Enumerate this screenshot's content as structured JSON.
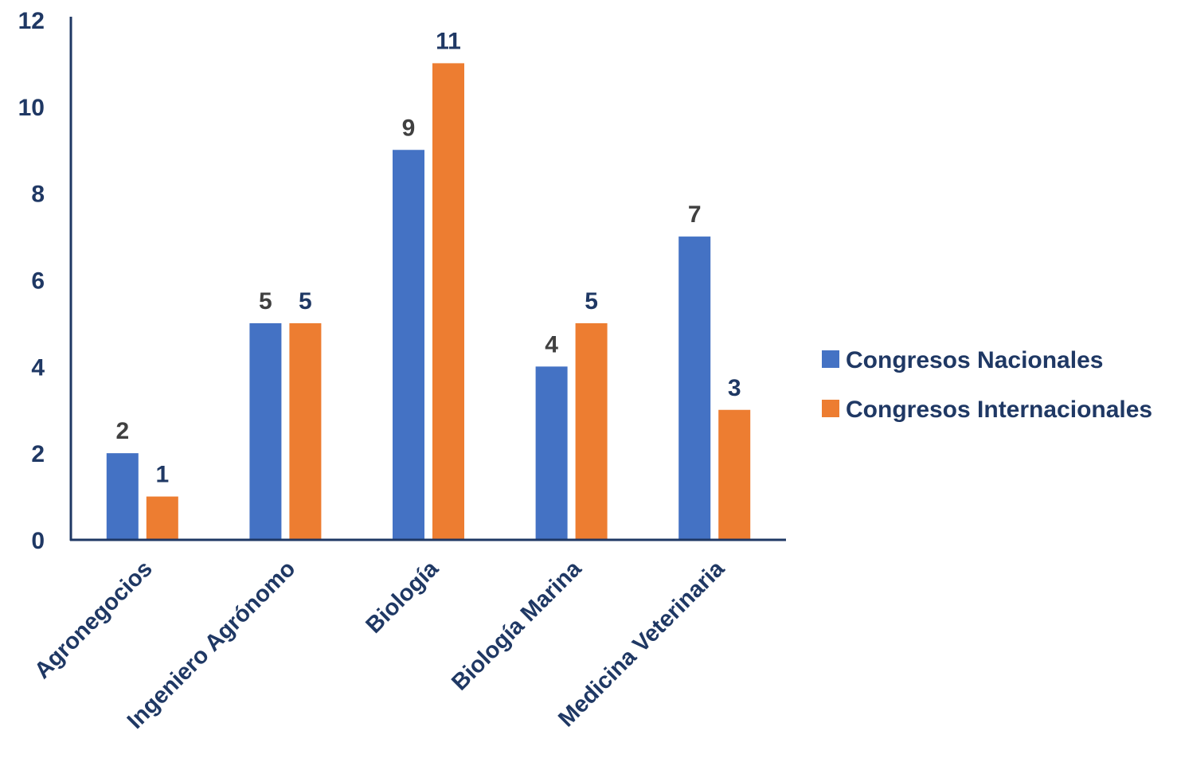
{
  "chart_data": {
    "type": "bar",
    "categories": [
      "Agronegocios",
      "Ingeniero Agrónomo",
      "Biología",
      "Biología Marina",
      "Medicina Veterinaria"
    ],
    "series": [
      {
        "name": "Congresos Nacionales",
        "values": [
          2,
          5,
          9,
          4,
          7
        ],
        "color": "#4472C4"
      },
      {
        "name": "Congresos Internacionales",
        "values": [
          1,
          5,
          11,
          5,
          3
        ],
        "color": "#ED7D31"
      }
    ],
    "ylim": [
      0,
      12
    ],
    "yticks": [
      0,
      2,
      4,
      6,
      8,
      10,
      12
    ],
    "ytick_labels": [
      "0",
      "2",
      "4",
      "6",
      "8",
      "10",
      "12"
    ],
    "grid": false,
    "legend_position": "right",
    "axis_color": "#1F3864",
    "tick_label_color": "#1F3864",
    "data_label_colors": [
      "#404040",
      "#1F3864"
    ],
    "title": "",
    "xlabel": "",
    "ylabel": ""
  }
}
